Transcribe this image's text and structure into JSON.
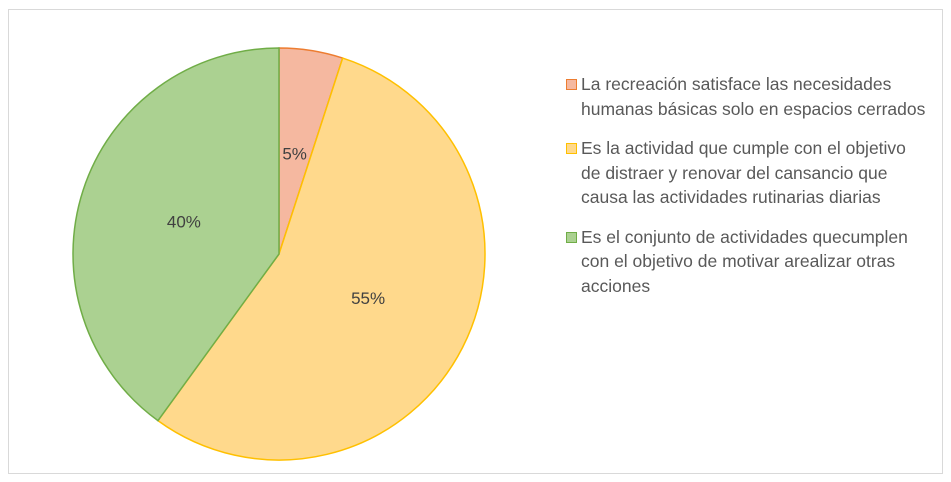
{
  "chart_data": {
    "type": "pie",
    "categories": [
      "La recreación satisface las necesidades humanas básicas solo en espacios cerrados",
      "Es la actividad que cumple con el objetivo de distraer y renovar del cansancio que causa las actividades rutinarias diarias",
      "Es el conjunto de actividades quecumplen con el objetivo de motivar arealizar otras acciones"
    ],
    "values": [
      5,
      55,
      40
    ],
    "value_labels": [
      "5%",
      "55%",
      "40%"
    ],
    "colors": [
      "#f5b8a0",
      "#ffd98c",
      "#abd191"
    ],
    "edge_colors": [
      "#ed7d31",
      "#ffc000",
      "#70ad47"
    ],
    "legend": "right"
  }
}
